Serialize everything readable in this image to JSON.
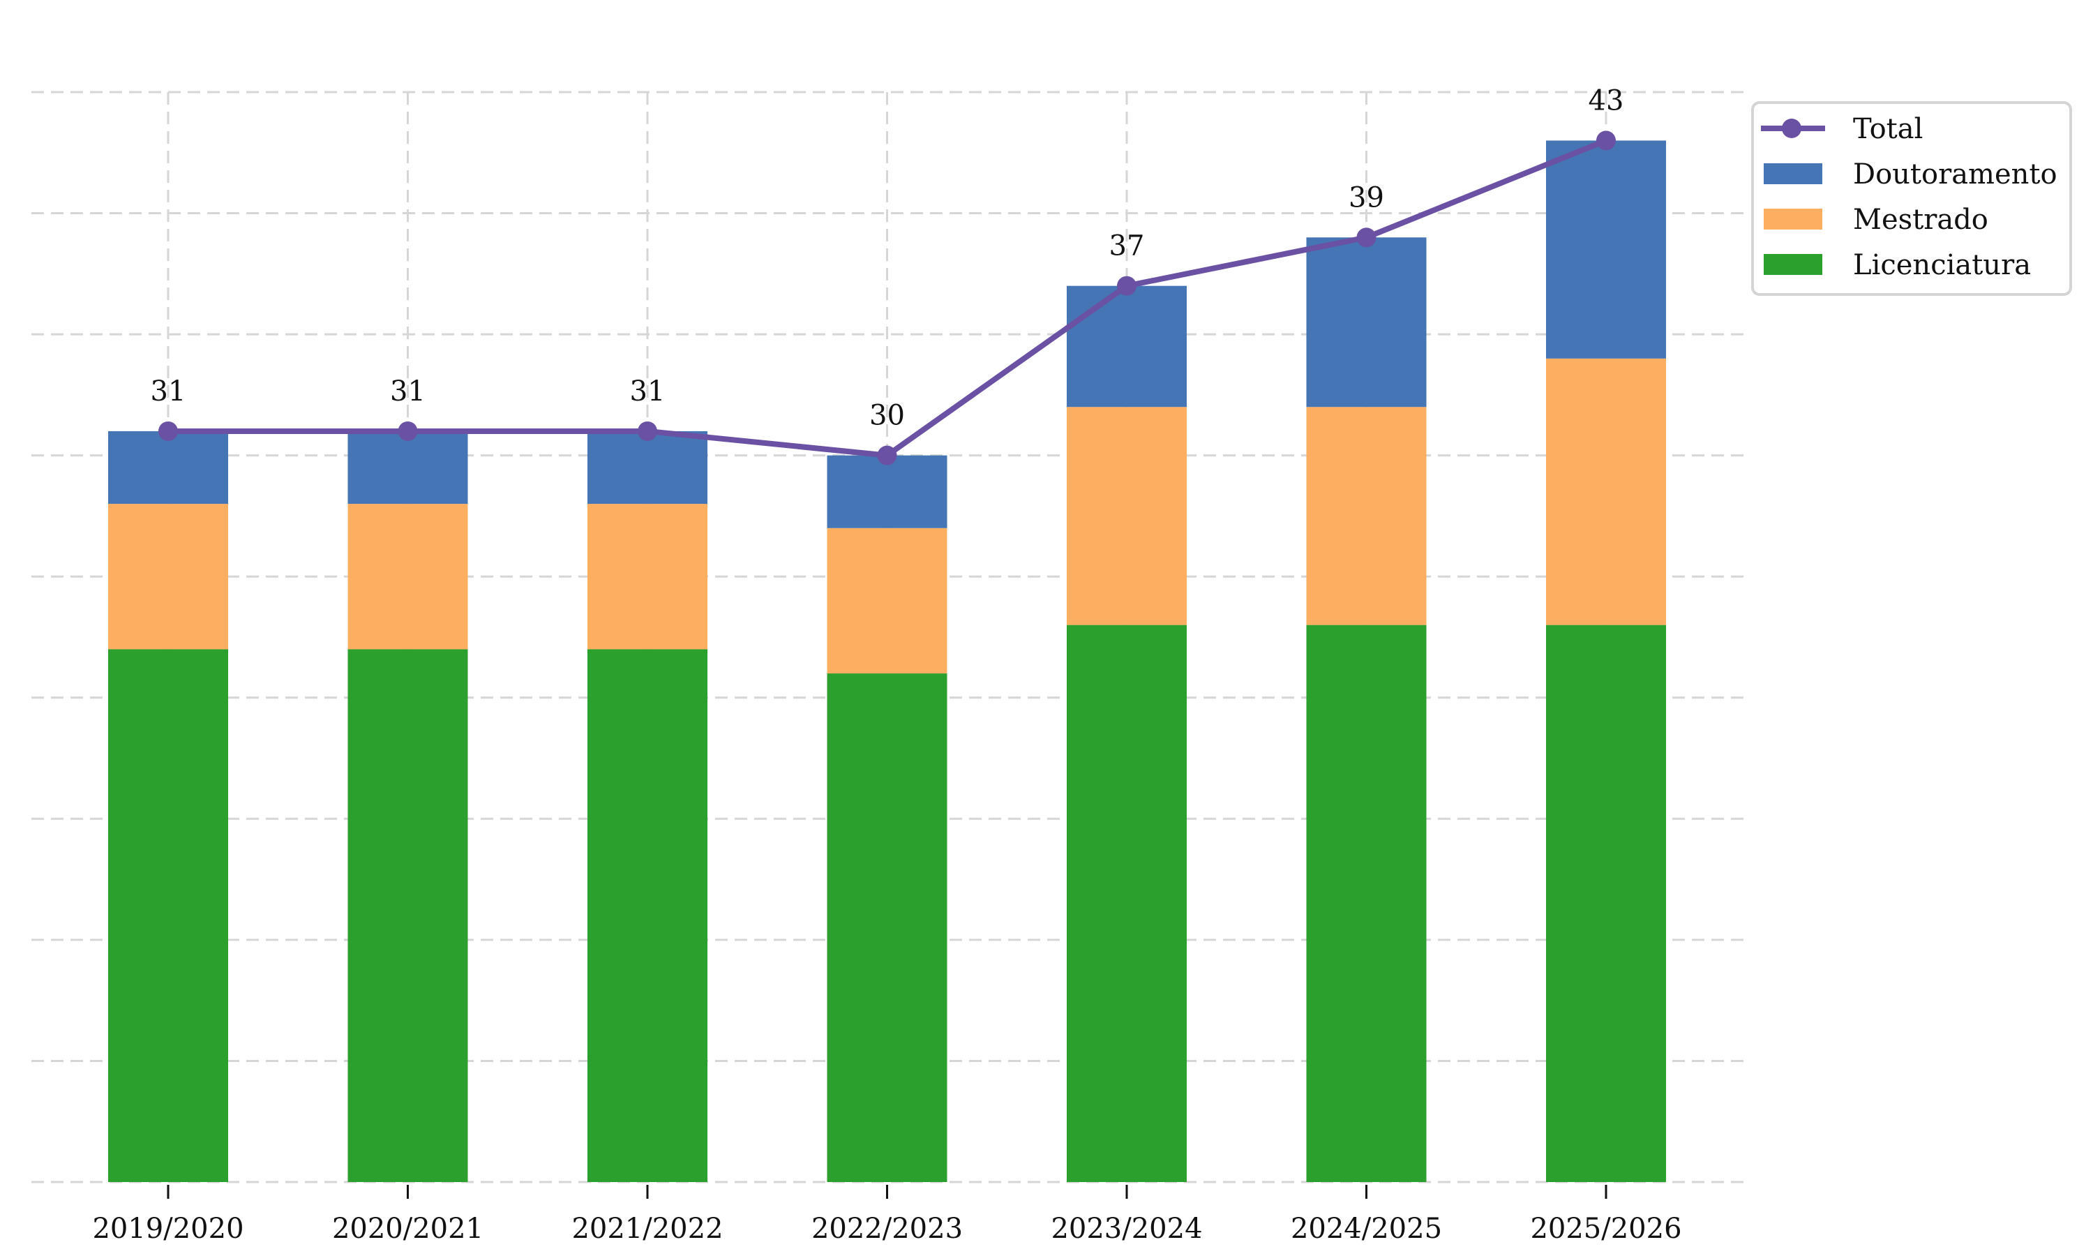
{
  "chart_data": {
    "type": "bar",
    "stacked": true,
    "title": "",
    "xlabel": "",
    "ylabel": "",
    "ylim": [
      0,
      45
    ],
    "yticks": [
      0,
      5,
      10,
      15,
      20,
      25,
      30,
      35,
      40,
      45
    ],
    "y_tick_labels_visible": false,
    "grid": true,
    "legend_position": "top-right",
    "categories": [
      "2019/2020",
      "2020/2021",
      "2021/2022",
      "2022/2023",
      "2023/2024",
      "2024/2025",
      "2025/2026"
    ],
    "series": [
      {
        "name": "Licenciatura",
        "kind": "bar",
        "color": "#2ca02c",
        "values": [
          22,
          22,
          22,
          21,
          23,
          23,
          23
        ]
      },
      {
        "name": "Mestrado",
        "kind": "bar",
        "color": "#fdae61",
        "values": [
          6,
          6,
          6,
          6,
          9,
          9,
          11
        ]
      },
      {
        "name": "Doutoramento",
        "kind": "bar",
        "color": "#4575b4",
        "values": [
          3,
          3,
          3,
          3,
          5,
          7,
          9
        ]
      },
      {
        "name": "Total",
        "kind": "line",
        "color": "#6a51a3",
        "values": [
          31,
          31,
          31,
          30,
          37,
          39,
          43
        ],
        "data_labels": [
          "31",
          "31",
          "31",
          "30",
          "37",
          "39",
          "43"
        ]
      }
    ],
    "legend": [
      "Total",
      "Doutoramento",
      "Mestrado",
      "Licenciatura"
    ]
  }
}
